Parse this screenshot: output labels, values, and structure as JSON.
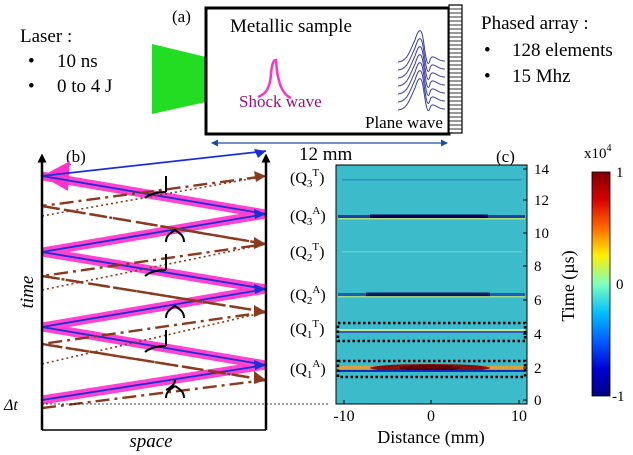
{
  "panel_a": {
    "label": "(a)",
    "laser": {
      "title": "Laser :",
      "bullets": [
        "10 ns",
        "0 to 4 J"
      ]
    },
    "sample_title": "Metallic sample",
    "shock_label": "Shock wave",
    "plane_label": "Plane wave",
    "width_label": "12 mm",
    "array": {
      "title": "Phased array :",
      "bullets": [
        "128 elements",
        "15 Mhz"
      ]
    }
  },
  "panel_b": {
    "label": "(b)",
    "ylabel": "time",
    "xlabel": "space",
    "dt_label": "Δt"
  },
  "panel_c": {
    "label": "(c)",
    "xlabel": "Distance (mm)",
    "ylabel": "Time (µs)",
    "xticks": [
      "-10",
      "0",
      "10"
    ],
    "yticks": [
      "0",
      "2",
      "4",
      "6",
      "8",
      "10",
      "12",
      "14"
    ],
    "echo_labels": [
      {
        "main": "(Q",
        "sub": "3",
        "sup": "T",
        "end": ")"
      },
      {
        "main": "(Q",
        "sub": "3",
        "sup": "A",
        "end": ")"
      },
      {
        "main": "(Q",
        "sub": "2",
        "sup": "T",
        "end": ")"
      },
      {
        "main": "(Q",
        "sub": "2",
        "sup": "A",
        "end": ")"
      },
      {
        "main": "(Q",
        "sub": "1",
        "sup": "T",
        "end": ")"
      },
      {
        "main": "(Q",
        "sub": "1",
        "sup": "A",
        "end": ")"
      }
    ],
    "colorbar": {
      "exponent": "x10",
      "exponent_power": "4",
      "ticks": [
        "1",
        "0",
        "-1"
      ]
    }
  },
  "colors": {
    "laser_green": "#22dd22",
    "shock_magenta": "#ff33cc",
    "arrow_blue": "#1a2fd6",
    "arrow_brown": "#8b3a1e",
    "bscan_background": "#3ab8c8"
  }
}
